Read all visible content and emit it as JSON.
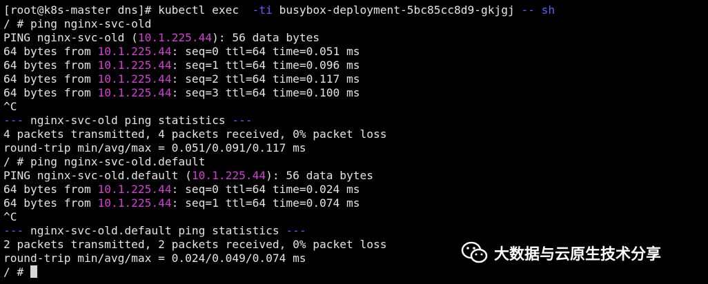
{
  "terminal": {
    "lines": [
      [
        {
          "text": "[root@k8s-master dns]# kubectl exec  "
        },
        {
          "text": "-ti",
          "color": "#5f5fff"
        },
        {
          "text": " busybox-deployment-5bc85cc8d9-gkjgj "
        },
        {
          "text": "-- sh",
          "color": "#5f5fff"
        }
      ],
      [
        {
          "text": "/ # ping nginx-svc-old"
        }
      ],
      [
        {
          "text": "PING nginx-svc-old ("
        },
        {
          "text": "10.1.225.44",
          "color": "#d43fd4"
        },
        {
          "text": "): 56 data bytes"
        }
      ],
      [
        {
          "text": "64 bytes from "
        },
        {
          "text": "10.1.225.44",
          "color": "#d43fd4"
        },
        {
          "text": ": seq=0 ttl=64 time=0.051 ms"
        }
      ],
      [
        {
          "text": "64 bytes from "
        },
        {
          "text": "10.1.225.44",
          "color": "#d43fd4"
        },
        {
          "text": ": seq=1 ttl=64 time=0.096 ms"
        }
      ],
      [
        {
          "text": "64 bytes from "
        },
        {
          "text": "10.1.225.44",
          "color": "#d43fd4"
        },
        {
          "text": ": seq=2 ttl=64 time=0.117 ms"
        }
      ],
      [
        {
          "text": "64 bytes from "
        },
        {
          "text": "10.1.225.44",
          "color": "#d43fd4"
        },
        {
          "text": ": seq=3 ttl=64 time=0.100 ms"
        }
      ],
      [
        {
          "text": "^C"
        }
      ],
      [
        {
          "text": "---",
          "color": "#5f5fff"
        },
        {
          "text": " nginx-svc-old ping statistics "
        },
        {
          "text": "---",
          "color": "#5f5fff"
        }
      ],
      [
        {
          "text": "4 packets transmitted, 4 packets received, 0% packet loss"
        }
      ],
      [
        {
          "text": "round-trip min/avg/max = 0.051/0.091/0.117 ms"
        }
      ],
      [
        {
          "text": "/ # ping nginx-svc-old.default"
        }
      ],
      [
        {
          "text": "PING nginx-svc-old.default ("
        },
        {
          "text": "10.1.225.44",
          "color": "#d43fd4"
        },
        {
          "text": "): 56 data bytes"
        }
      ],
      [
        {
          "text": "64 bytes from "
        },
        {
          "text": "10.1.225.44",
          "color": "#d43fd4"
        },
        {
          "text": ": seq=0 ttl=64 time=0.024 ms"
        }
      ],
      [
        {
          "text": "64 bytes from "
        },
        {
          "text": "10.1.225.44",
          "color": "#d43fd4"
        },
        {
          "text": ": seq=1 ttl=64 time=0.074 ms"
        }
      ],
      [
        {
          "text": "^C"
        }
      ],
      [
        {
          "text": "---",
          "color": "#5f5fff"
        },
        {
          "text": " nginx-svc-old.default ping statistics "
        },
        {
          "text": "---",
          "color": "#5f5fff"
        }
      ],
      [
        {
          "text": "2 packets transmitted, 2 packets received, 0% packet loss"
        }
      ],
      [
        {
          "text": "round-trip min/avg/max = 0.024/0.049/0.074 ms"
        }
      ],
      [
        {
          "text": "/ # "
        }
      ]
    ]
  },
  "watermark": {
    "text": "大数据与云原生技术分享"
  }
}
